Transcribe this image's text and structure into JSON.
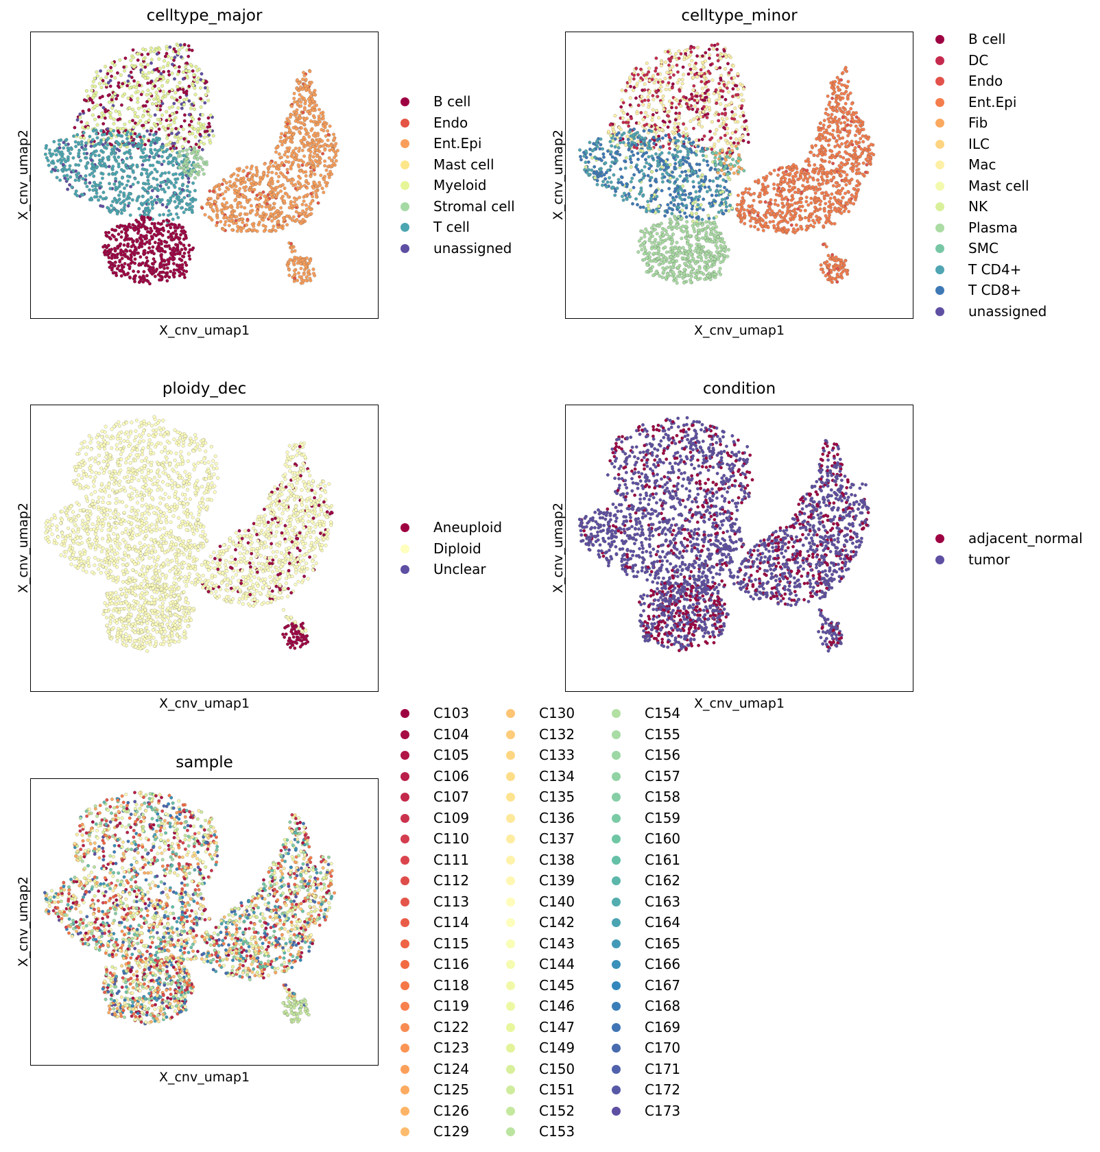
{
  "chart_data": [
    {
      "type": "scatter",
      "title": "celltype_major",
      "xlabel": "X_cnv_umap1",
      "ylabel": "X_cnv_umap2",
      "legend_placement": "right",
      "grid": false,
      "categories": [
        "B cell",
        "Endo",
        "Ent.Epi",
        "Mast cell",
        "Myeloid",
        "Stromal cell",
        "T cell",
        "unassigned"
      ],
      "colors": [
        "#9e0142",
        "#e45545",
        "#f99e5a",
        "#fde68a",
        "#e6f598",
        "#a5d9a4",
        "#4ba6b1",
        "#5e4fa2"
      ]
    },
    {
      "type": "scatter",
      "title": "celltype_minor",
      "xlabel": "X_cnv_umap1",
      "ylabel": "X_cnv_umap2",
      "legend_placement": "right",
      "grid": false,
      "categories": [
        "B cell",
        "DC",
        "Endo",
        "Ent.Epi",
        "Fib",
        "ILC",
        "Mac",
        "Mast cell",
        "NK",
        "Plasma",
        "SMC",
        "T CD4+",
        "T CD8+",
        "unassigned"
      ],
      "colors": [
        "#9e0142",
        "#c52a4d",
        "#e2524a",
        "#f47d4d",
        "#fba95f",
        "#fed481",
        "#fdf0a6",
        "#f3faad",
        "#d9f09b",
        "#aadca4",
        "#77c7a5",
        "#4fa5b2",
        "#3e79b6",
        "#5e4fa2"
      ]
    },
    {
      "type": "scatter",
      "title": "ploidy_dec",
      "xlabel": "X_cnv_umap1",
      "ylabel": "X_cnv_umap2",
      "legend_placement": "right",
      "grid": false,
      "categories": [
        "Aneuploid",
        "Diploid",
        "Unclear"
      ],
      "colors": [
        "#9e0142",
        "#ffffbe",
        "#5e4fa2"
      ]
    },
    {
      "type": "scatter",
      "title": "condition",
      "xlabel": "X_cnv_umap1",
      "ylabel": "X_cnv_umap2",
      "legend_placement": "right",
      "grid": false,
      "categories": [
        "adjacent_normal",
        "tumor"
      ],
      "colors": [
        "#9e0142",
        "#5e4fa2"
      ]
    },
    {
      "type": "scatter",
      "title": "sample",
      "xlabel": "X_cnv_umap1",
      "ylabel": "X_cnv_umap2",
      "legend_placement": "right",
      "grid": false,
      "categories": [
        "C103",
        "C104",
        "C105",
        "C106",
        "C107",
        "C109",
        "C110",
        "C111",
        "C112",
        "C113",
        "C114",
        "C115",
        "C116",
        "C118",
        "C119",
        "C122",
        "C123",
        "C124",
        "C125",
        "C126",
        "C129",
        "C130",
        "C132",
        "C133",
        "C134",
        "C135",
        "C136",
        "C137",
        "C138",
        "C139",
        "C140",
        "C142",
        "C143",
        "C144",
        "C145",
        "C146",
        "C147",
        "C149",
        "C150",
        "C151",
        "C152",
        "C153",
        "C154",
        "C155",
        "C156",
        "C157",
        "C158",
        "C159",
        "C160",
        "C161",
        "C162",
        "C163",
        "C164",
        "C165",
        "C166",
        "C167",
        "C168",
        "C169",
        "C170",
        "C171",
        "C172",
        "C173"
      ],
      "colormap": "Spectral"
    }
  ]
}
